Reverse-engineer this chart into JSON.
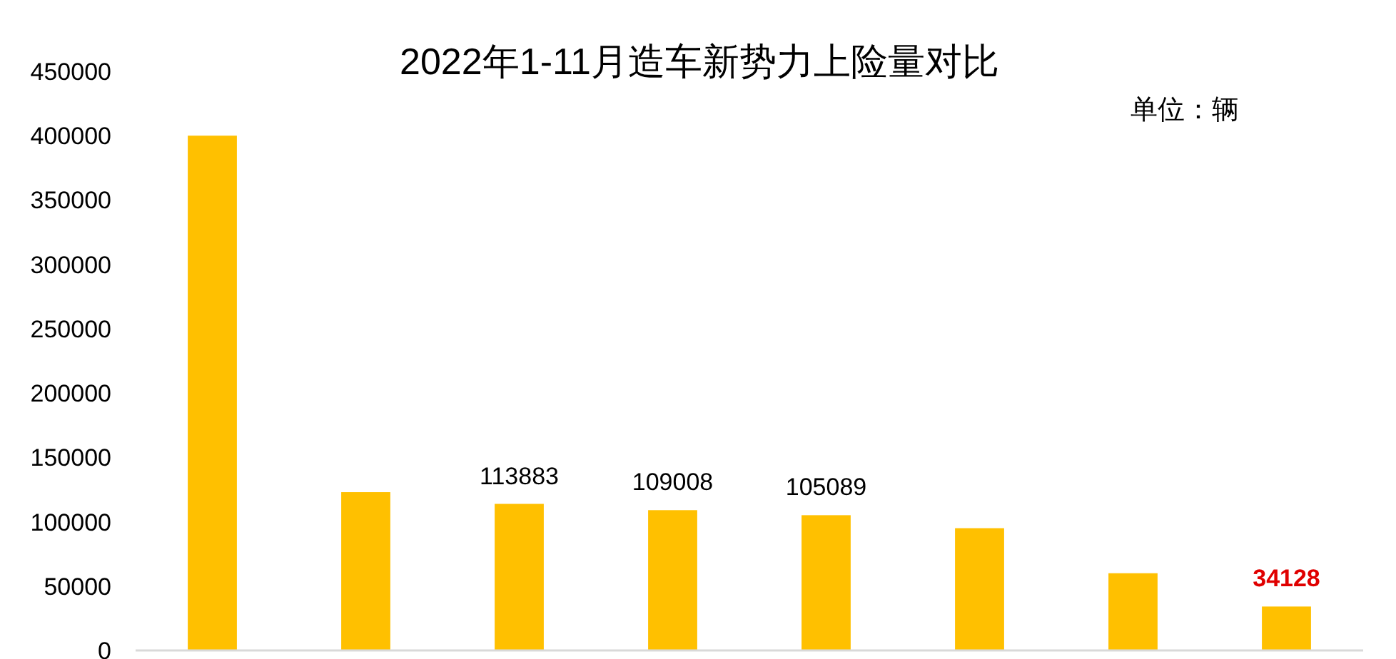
{
  "chart_data": {
    "type": "bar",
    "title": "2022年1-11月造车新势力上险量对比",
    "annotations": [
      "单位：辆"
    ],
    "categories": [
      null,
      null,
      null,
      null,
      null,
      null,
      null,
      null
    ],
    "values": [
      400000,
      123000,
      113883,
      109008,
      105089,
      95000,
      60000,
      34128
    ],
    "value_labels": [
      null,
      null,
      "113883",
      "109008",
      "105089",
      null,
      null,
      "**34128**"
    ],
    "color": "#ffc000",
    "ylim": [
      0,
      450000
    ],
    "yticks": [
      0,
      50000,
      100000,
      150000,
      200000,
      250000,
      300000,
      350000,
      400000,
      450000
    ],
    "grid": false
  }
}
